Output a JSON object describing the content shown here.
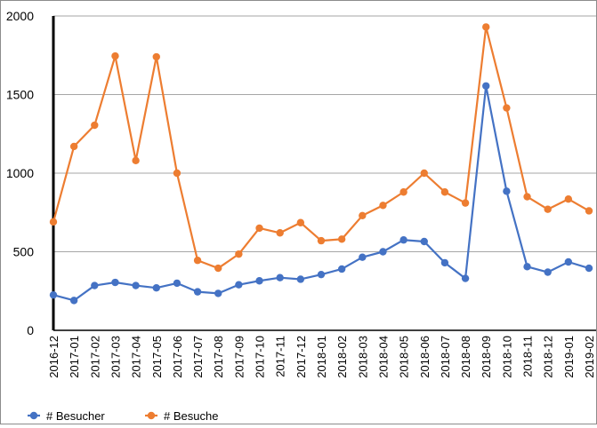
{
  "chart_data": {
    "type": "line",
    "categories": [
      "2016-12",
      "2017-01",
      "2017-02",
      "2017-03",
      "2017-04",
      "2017-05",
      "2017-06",
      "2017-07",
      "2017-08",
      "2017-09",
      "2017-10",
      "2017-11",
      "2017-12",
      "2018-01",
      "2018-02",
      "2018-03",
      "2018-04",
      "2018-05",
      "2018-06",
      "2018-07",
      "2018-08",
      "2018-09",
      "2018-10",
      "2018-11",
      "2018-12",
      "2019-01",
      "2019-02"
    ],
    "series": [
      {
        "name": "# Besucher",
        "color": "#4472c4",
        "values": [
          225,
          190,
          285,
          305,
          285,
          270,
          300,
          245,
          235,
          290,
          315,
          335,
          325,
          355,
          390,
          465,
          500,
          575,
          565,
          430,
          330,
          1555,
          885,
          405,
          370,
          435,
          395
        ]
      },
      {
        "name": "# Besuche",
        "color": "#ed7d31",
        "values": [
          690,
          1170,
          1305,
          1745,
          1080,
          1740,
          1000,
          445,
          395,
          485,
          650,
          620,
          685,
          570,
          580,
          730,
          795,
          880,
          1000,
          880,
          810,
          1930,
          1415,
          850,
          770,
          835,
          760
        ]
      }
    ],
    "yticks": [
      0,
      500,
      1000,
      1500,
      2000
    ],
    "ylim": [
      0,
      2000
    ],
    "grid": true,
    "legend_position": "bottom-left"
  }
}
